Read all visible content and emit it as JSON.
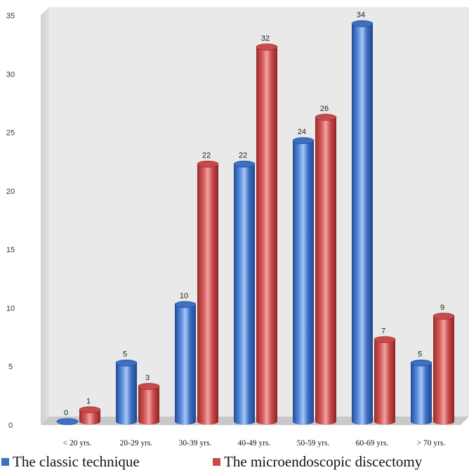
{
  "colors": {
    "series": [
      "#3d6fc2",
      "#c94a4a"
    ],
    "wall": "#e9e9e9",
    "floor": "#c9c9c9"
  },
  "chart_data": {
    "type": "bar",
    "title": "",
    "xlabel": "",
    "ylabel": "",
    "ylim": [
      0,
      35
    ],
    "yticks": [
      0,
      5,
      10,
      15,
      20,
      25,
      30,
      35
    ],
    "grid": false,
    "style": "3d-cylinder",
    "legend_position": "bottom",
    "categories": [
      "< 20 yrs.",
      "20-29 yrs.",
      "30-39 yrs.",
      "40-49 yrs.",
      "50-59 yrs.",
      "60-69 yrs.",
      "> 70 yrs."
    ],
    "series": [
      {
        "name": "The classic technique",
        "values": [
          0,
          5,
          10,
          22,
          24,
          34,
          5
        ]
      },
      {
        "name": "The microendoscopic discectomy",
        "values": [
          1,
          3,
          22,
          32,
          26,
          7,
          9
        ]
      }
    ]
  }
}
